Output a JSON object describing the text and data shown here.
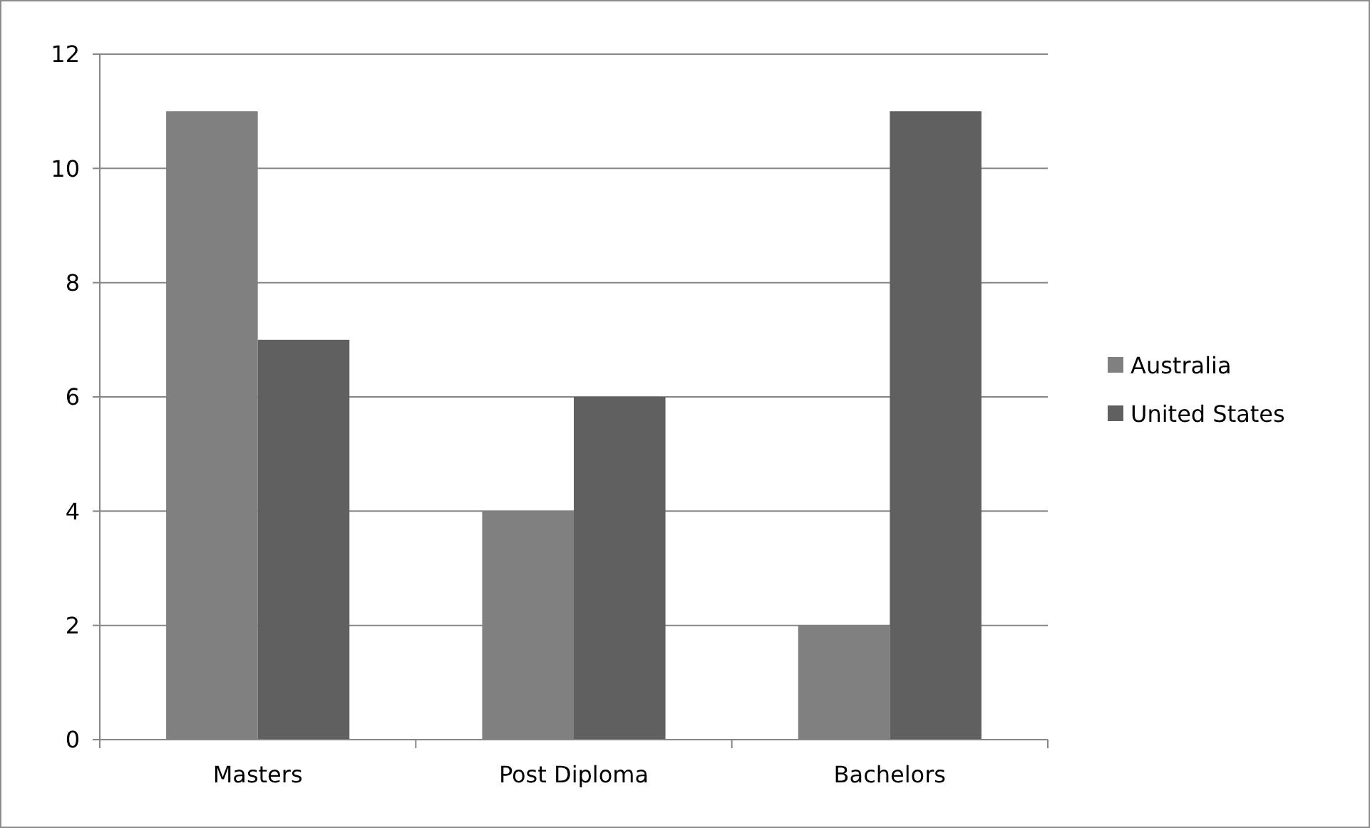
{
  "chart_data": {
    "type": "bar",
    "categories": [
      "Masters",
      "Post Diploma",
      "Bachelors"
    ],
    "series": [
      {
        "name": "Australia",
        "color": "#808080",
        "values": [
          11,
          4,
          2
        ]
      },
      {
        "name": "United States",
        "color": "#606060",
        "values": [
          7,
          6,
          11
        ]
      }
    ],
    "ylim": [
      0,
      12
    ],
    "yticks": [
      0,
      2,
      4,
      6,
      8,
      10,
      12
    ],
    "grid": "y",
    "legend": "right"
  }
}
